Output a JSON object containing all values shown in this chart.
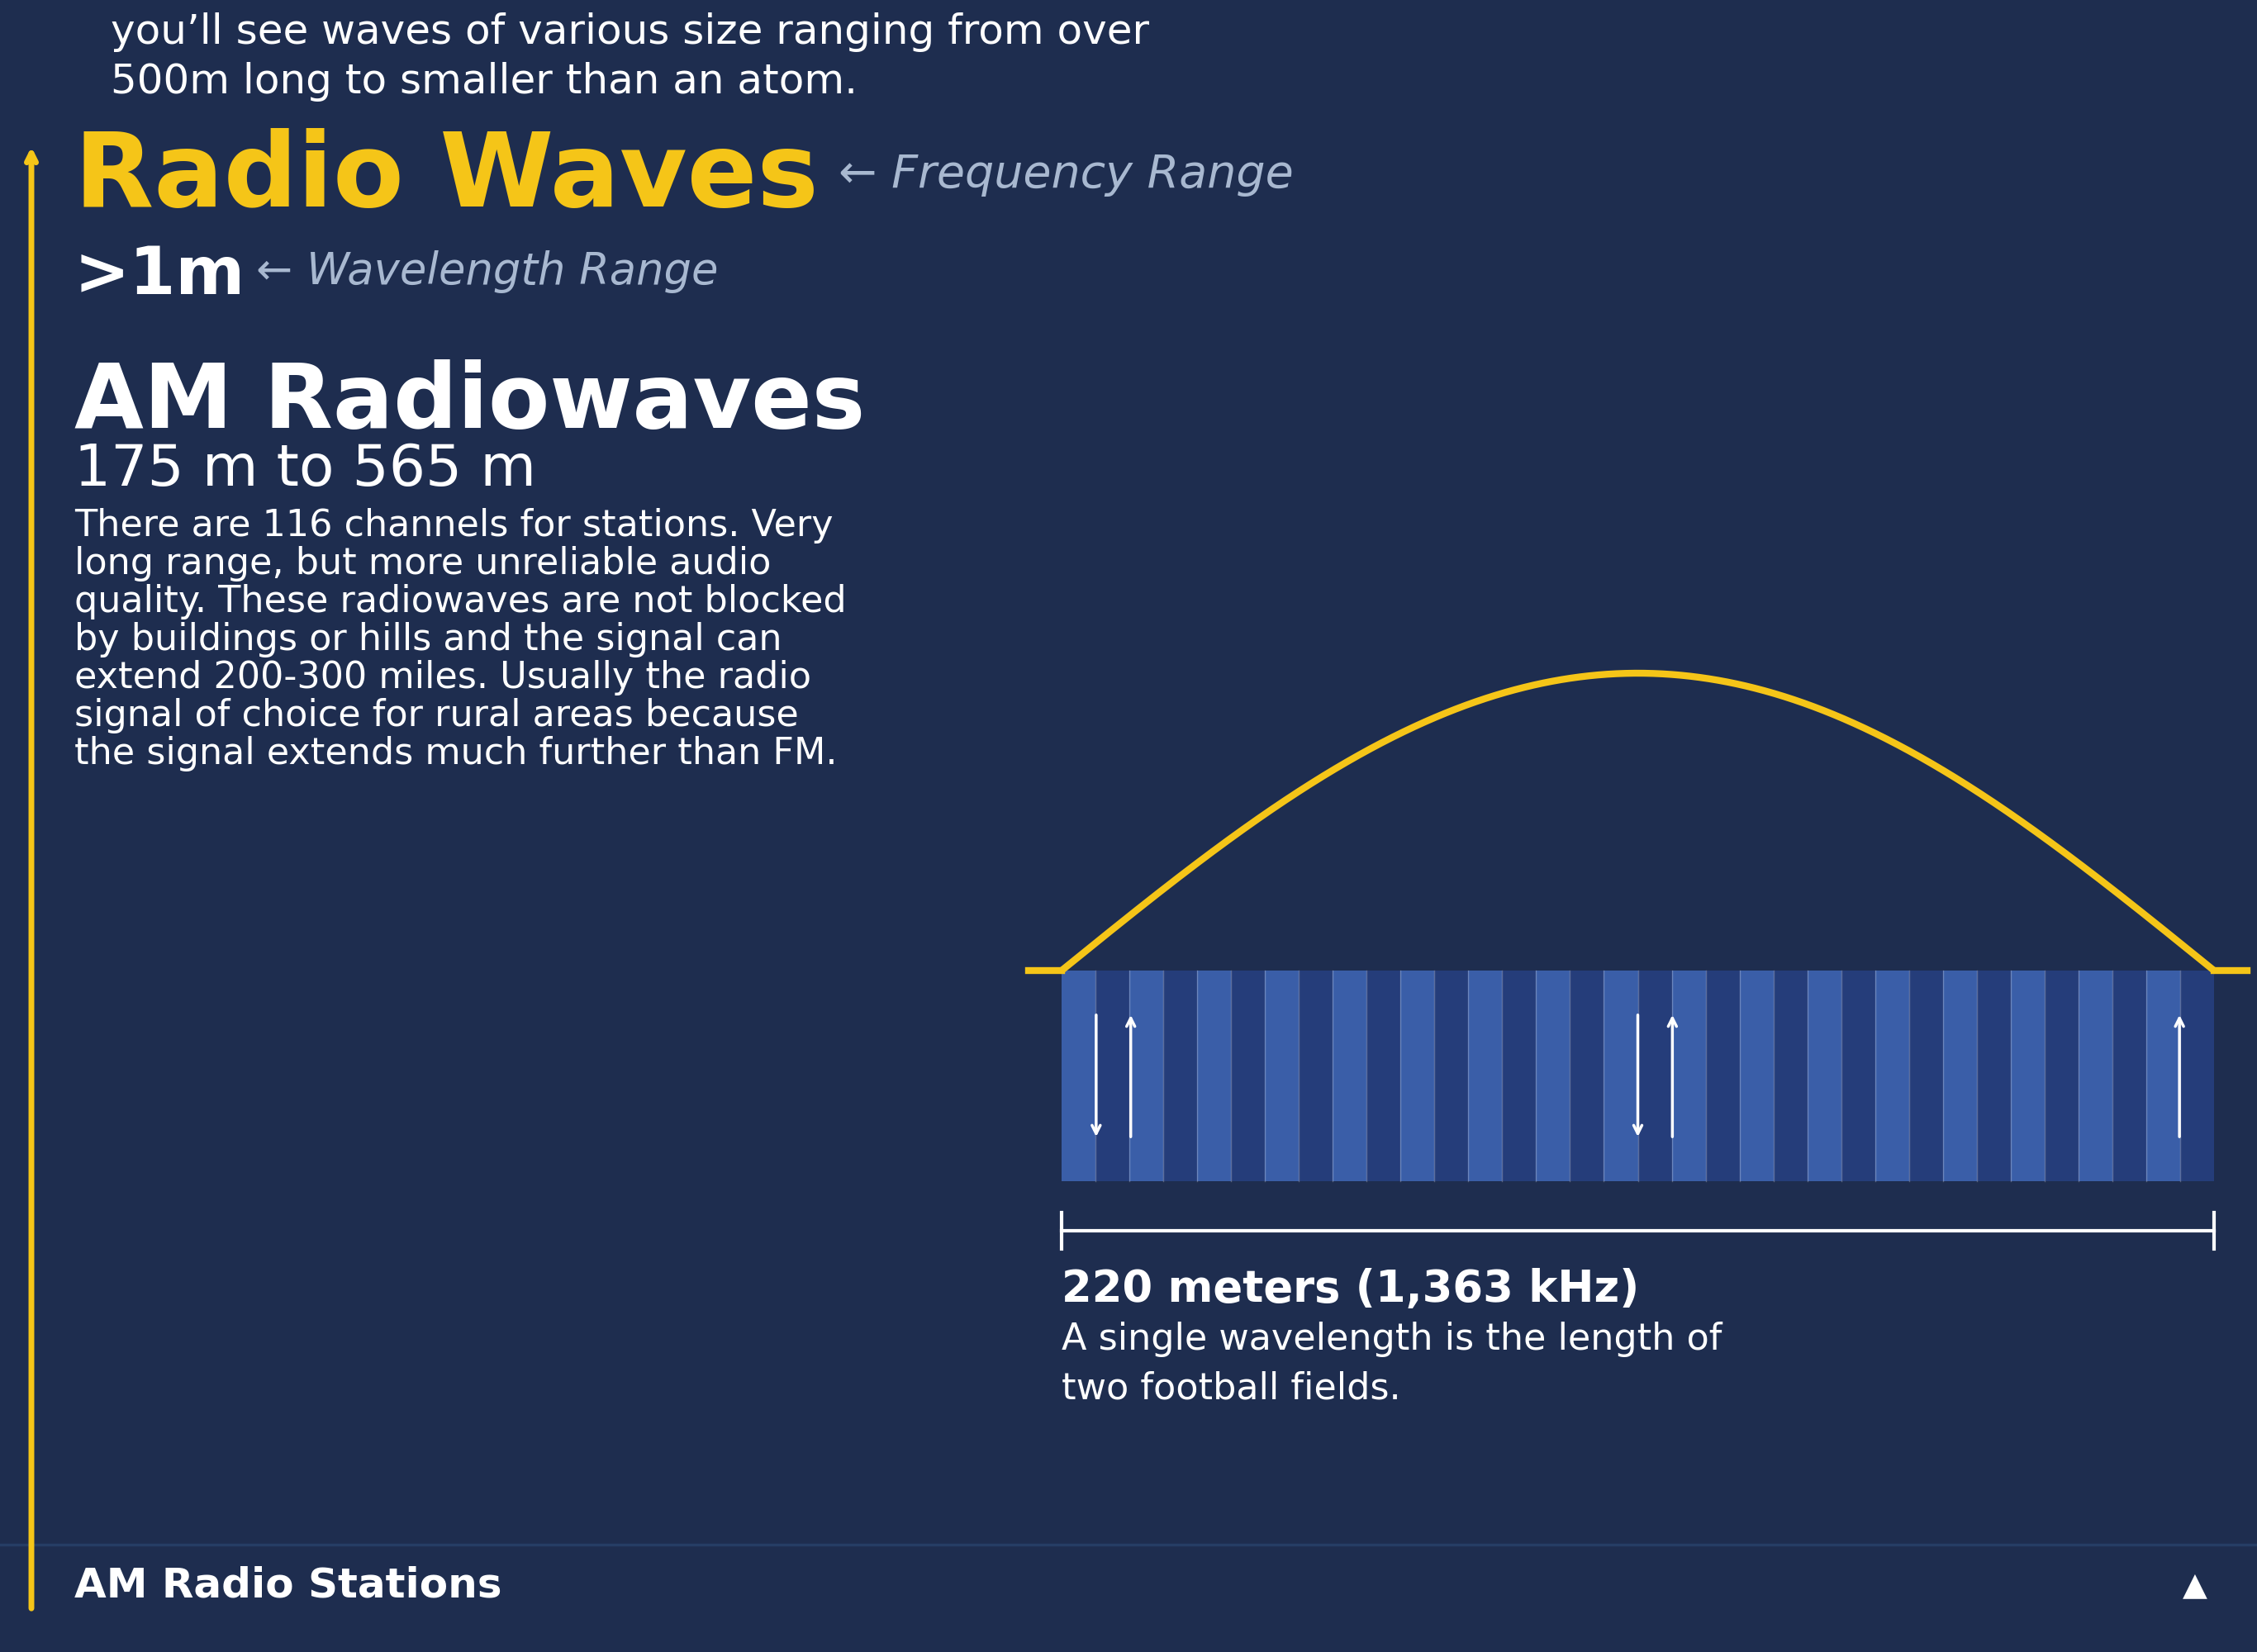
{
  "bg_color": "#1e2d4f",
  "yellow": "#f5c518",
  "white": "#ffffff",
  "light_blue": "#a8b8d0",
  "header_text_line1": "you’ll see waves of various size ranging from over",
  "header_text_line2": "500m long to smaller than an atom.",
  "section_title": "Radio Waves",
  "freq_label": "← Frequency Range",
  "wavelength_value": ">1m",
  "wavelength_range_label": "← Wavelength Range",
  "subsection_title": "AM Radiowaves",
  "subsection_range": "175 m to 565 m",
  "description_lines": [
    "There are 116 channels for stations. Very",
    "long range, but more unreliable audio",
    "quality. These radiowaves are not blocked",
    "by buildings or hills and the signal can",
    "extend 200-300 miles. Usually the radio",
    "signal of choice for rural areas because",
    "the signal extends much further than FM."
  ],
  "wave_measurement_bold": "220 meters (1,363 kHz)",
  "wave_measurement_desc": "A single wavelength is the length of\ntwo football fields.",
  "bottom_label": "AM Radio Stations",
  "scale": 2.44
}
